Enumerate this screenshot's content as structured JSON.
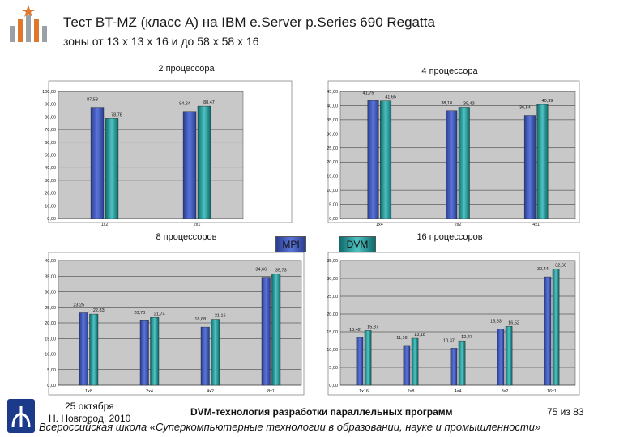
{
  "header": {
    "title": "Тест BT-MZ (класс A) на IBM e.Server p.Series 690 Regatta",
    "subtitle": "зоны от 13 x 13 x 16 и до 58 x 58 x 16"
  },
  "legend": {
    "mpi": "MPI",
    "dvm": "DVM"
  },
  "colors": {
    "mpi": "#3f56c0",
    "dvm": "#2aa8a8",
    "plot_bg": "#c8c8c8",
    "grid": "#000000"
  },
  "chart_data": [
    {
      "type": "bar",
      "title": "2 процессора",
      "categories": [
        "1x2",
        "2x1"
      ],
      "ylim": [
        0,
        100
      ],
      "yticks": [
        "0,00",
        "10,00",
        "20,00",
        "30,00",
        "40,00",
        "50,00",
        "60,00",
        "70,00",
        "80,00",
        "90,00",
        "100,00"
      ],
      "series": [
        {
          "name": "MPI",
          "values": [
            87.53,
            84.24
          ],
          "labels": [
            "87,53",
            "84,24"
          ]
        },
        {
          "name": "DVM",
          "values": [
            78.76,
            88.47
          ],
          "labels": [
            "78,76",
            "88,47"
          ]
        }
      ],
      "grid": true
    },
    {
      "type": "bar",
      "title": "4 процессора",
      "categories": [
        "1x4",
        "2x2",
        "4x1"
      ],
      "ylim": [
        0,
        45
      ],
      "yticks": [
        "0,00",
        "5,00",
        "10,00",
        "15,00",
        "20,00",
        "25,00",
        "30,00",
        "35,00",
        "40,00",
        "45,00"
      ],
      "series": [
        {
          "name": "MPI",
          "values": [
            41.75,
            38.18,
            36.54
          ],
          "labels": [
            "41,75",
            "38,18",
            "36,54"
          ]
        },
        {
          "name": "DVM",
          "values": [
            41.65,
            39.43,
            40.39
          ],
          "labels": [
            "41,65",
            "39,43",
            "40,39"
          ]
        }
      ],
      "grid": true
    },
    {
      "type": "bar",
      "title": "8 процессоров",
      "categories": [
        "1x8",
        "2x4",
        "4x2",
        "8x1"
      ],
      "ylim": [
        0,
        40
      ],
      "yticks": [
        "0,00",
        "5,00",
        "10,00",
        "15,00",
        "20,00",
        "25,00",
        "30,00",
        "35,00",
        "40,00"
      ],
      "series": [
        {
          "name": "MPI",
          "values": [
            23.25,
            20.73,
            18.68,
            34.66
          ],
          "labels": [
            "23,25",
            "20,73",
            "18,68",
            "34,66"
          ]
        },
        {
          "name": "DVM",
          "values": [
            22.83,
            21.74,
            21.16,
            35.73
          ],
          "labels": [
            "22,83",
            "21,74",
            "21,16",
            "35,73"
          ]
        }
      ],
      "grid": true
    },
    {
      "type": "bar",
      "title": "16 процессоров",
      "categories": [
        "1x16",
        "2x8",
        "4x4",
        "8x2",
        "16x1"
      ],
      "ylim": [
        0,
        35
      ],
      "yticks": [
        "0,00",
        "5,00",
        "10,00",
        "15,00",
        "20,00",
        "25,00",
        "30,00",
        "35,00"
      ],
      "series": [
        {
          "name": "MPI",
          "values": [
            13.42,
            11.16,
            10.37,
            15.83,
            30.44
          ],
          "labels": [
            "13,42",
            "11,16",
            "10,37",
            "15,83",
            "30,44"
          ]
        },
        {
          "name": "DVM",
          "values": [
            15.37,
            13.18,
            12.47,
            16.52,
            32.6
          ],
          "labels": [
            "15,37",
            "13,18",
            "12,47",
            "16,52",
            "32,60"
          ]
        }
      ],
      "grid": true
    }
  ],
  "footer": {
    "date": "25 октября",
    "city": "Н. Новгород, 2010",
    "course": "DVM-технология разработки параллельных программ",
    "page": "75 из 83",
    "school": "Всероссийская школа «Суперкомпьютерные технологии в образовании, науке и промышленности»"
  }
}
